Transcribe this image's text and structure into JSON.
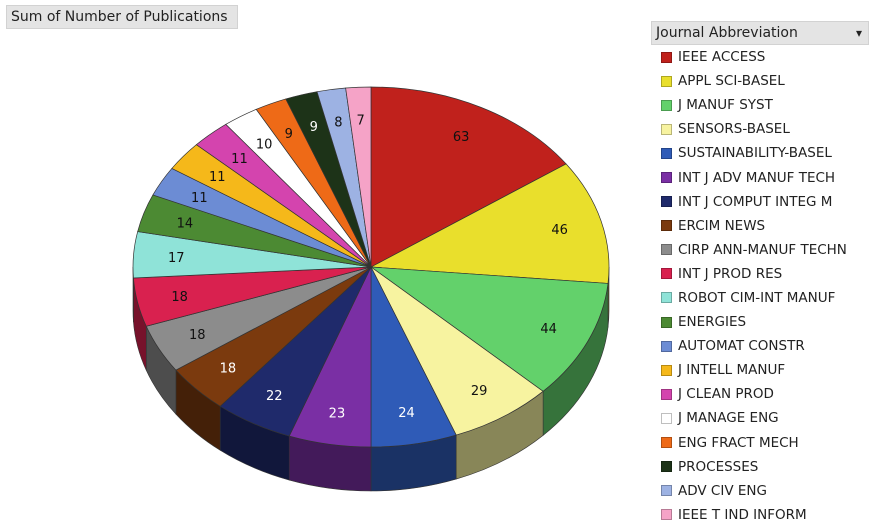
{
  "field_button": "Sum of Number of Publications",
  "legend_title": "Journal Abbreviation",
  "chart_data": {
    "type": "pie",
    "title": "Sum of Number of Publications",
    "legend_placement": "right",
    "series": [
      {
        "name": "IEEE ACCESS",
        "value": 63,
        "color": "#C0211C"
      },
      {
        "name": "APPL SCI-BASEL",
        "value": 46,
        "color": "#E9DF2C"
      },
      {
        "name": "J MANUF SYST",
        "value": 44,
        "color": "#63D16B"
      },
      {
        "name": "SENSORS-BASEL",
        "value": 29,
        "color": "#F7F3A0"
      },
      {
        "name": "SUSTAINABILITY-BASEL",
        "value": 24,
        "color": "#2F5BB7"
      },
      {
        "name": "INT J ADV MANUF TECH",
        "value": 23,
        "color": "#7A2FA4"
      },
      {
        "name": "INT J COMPUT INTEG M",
        "value": 22,
        "color": "#1F2A6B"
      },
      {
        "name": "ERCIM NEWS",
        "value": 18,
        "color": "#7B3A0E"
      },
      {
        "name": "CIRP ANN-MANUF TECHN",
        "value": 18,
        "color": "#8C8C8C"
      },
      {
        "name": "INT J PROD RES",
        "value": 18,
        "color": "#D9214F"
      },
      {
        "name": "ROBOT CIM-INT MANUF",
        "value": 17,
        "color": "#8FE3D8"
      },
      {
        "name": "ENERGIES",
        "value": 14,
        "color": "#4C8A33"
      },
      {
        "name": "AUTOMAT CONSTR",
        "value": 11,
        "color": "#6C8CD4"
      },
      {
        "name": "J INTELL MANUF",
        "value": 11,
        "color": "#F5B81A"
      },
      {
        "name": "J CLEAN PROD",
        "value": 11,
        "color": "#D444AE"
      },
      {
        "name": "J MANAGE ENG",
        "value": 10,
        "color": "#FFFFFF"
      },
      {
        "name": "ENG FRACT MECH",
        "value": 9,
        "color": "#EE6A17"
      },
      {
        "name": "PROCESSES",
        "value": 9,
        "color": "#1D3318"
      },
      {
        "name": "ADV CIV ENG",
        "value": 8,
        "color": "#9DB2E3"
      },
      {
        "name": "IEEE T IND INFORM",
        "value": 7,
        "color": "#F5A3C7"
      }
    ]
  }
}
